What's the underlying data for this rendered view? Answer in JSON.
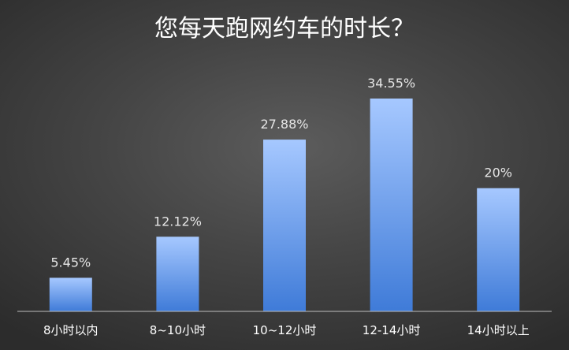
{
  "chart_data": {
    "type": "bar",
    "title": "您每天跑网约车的时长？",
    "categories": [
      "8小时以内",
      "8~10小时",
      "10~12小时",
      "12-14小时",
      "14小时以上"
    ],
    "values": [
      5.45,
      12.12,
      27.88,
      34.55,
      20
    ],
    "value_labels": [
      "5.45%",
      "12.12%",
      "27.88%",
      "34.55%",
      "20%"
    ],
    "ylim": [
      0,
      40
    ],
    "grid": false,
    "legend": "none",
    "colors": {
      "bar_top": "#a6c8ff",
      "bar_bottom": "#3f7bd8",
      "axis": "#bdbdbd"
    }
  }
}
